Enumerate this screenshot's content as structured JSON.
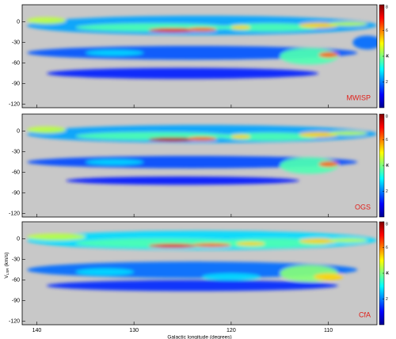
{
  "chart_data": [
    {
      "type": "heatmap",
      "label": "MWISP",
      "background": "#c8c8c8",
      "xlim": [
        141.5,
        105
      ],
      "ylim": [
        -125,
        25
      ],
      "xticks": [
        140,
        130,
        120,
        110
      ],
      "yticks": [
        0,
        -30,
        -60,
        -90,
        -120
      ],
      "clim": [
        0,
        8
      ],
      "cticks": [
        2,
        4,
        6,
        8
      ],
      "clabel": "K",
      "features": {
        "l": [
          123,
          124,
          125,
          128,
          116,
          139,
          126,
          123,
          119,
          112,
          110,
          111,
          108,
          132,
          106
        ],
        "v": [
          -5,
          -45,
          -75,
          -8,
          -8,
          2,
          -12,
          -11,
          -8,
          -50,
          -48,
          -5,
          -3,
          -45,
          -30
        ],
        "dl": [
          18,
          17,
          14,
          8,
          5,
          2,
          2.5,
          1.5,
          1,
          3,
          1,
          2,
          2,
          3,
          1.5
        ],
        "dv": [
          14,
          10,
          8,
          6,
          6,
          5,
          3,
          3,
          3,
          12,
          4,
          4,
          3,
          4,
          10
        ],
        "T": [
          1.5,
          0.8,
          0.3,
          3,
          3,
          4,
          7,
          6,
          5,
          3,
          6,
          5,
          4,
          2,
          1
        ]
      }
    },
    {
      "type": "heatmap",
      "label": "OGS",
      "background": "#c8c8c8",
      "xlim": [
        141.5,
        105
      ],
      "ylim": [
        -125,
        25
      ],
      "xticks": [
        140,
        130,
        120,
        110
      ],
      "yticks": [
        0,
        -30,
        -60,
        -90,
        -120
      ],
      "clim": [
        0,
        8
      ],
      "cticks": [
        2,
        4,
        6,
        8
      ],
      "clabel": "K",
      "features": {
        "l": [
          123,
          124,
          125,
          128,
          116,
          139,
          126,
          123,
          119,
          112,
          110,
          111,
          108,
          132
        ],
        "v": [
          -4,
          -45,
          -72,
          -7,
          -8,
          2,
          -12,
          -11,
          -8,
          -50,
          -48,
          -5,
          -3,
          -45
        ],
        "dl": [
          18,
          17,
          12,
          8,
          5,
          2,
          2.5,
          1.5,
          1,
          3,
          1,
          2,
          2,
          3
        ],
        "dv": [
          13,
          9,
          6,
          6,
          6,
          5,
          3,
          3,
          3,
          12,
          4,
          4,
          3,
          4
        ],
        "T": [
          1.5,
          0.7,
          0.25,
          3,
          3,
          4,
          7.5,
          6,
          5,
          3,
          6,
          5,
          4,
          2
        ]
      }
    },
    {
      "type": "heatmap",
      "label": "CfA",
      "background": "#c8c8c8",
      "xlim": [
        141.5,
        105
      ],
      "ylim": [
        -125,
        25
      ],
      "xticks": [
        140,
        130,
        120,
        110
      ],
      "yticks": [
        0,
        -30,
        -60,
        -90,
        -120
      ],
      "clim": [
        0,
        8
      ],
      "cticks": [
        2,
        4,
        6,
        8
      ],
      "clabel": "K",
      "xlabel": "Galactic longitude (degrees)",
      "ylabel": "V",
      "ylabel_sub": "LSR",
      "ylabel_unit": "(km/s)",
      "features": {
        "l": [
          123,
          124,
          124,
          127,
          116,
          138,
          126,
          122,
          118,
          112,
          110,
          111,
          108,
          133,
          120
        ],
        "v": [
          -2,
          -45,
          -68,
          -6,
          -6,
          3,
          -10,
          -9,
          -7,
          -50,
          -55,
          -3,
          -2,
          -48,
          -55
        ],
        "dl": [
          18,
          17,
          15,
          9,
          6,
          3,
          2.5,
          2,
          1.5,
          3,
          1.5,
          2,
          2,
          3,
          3
        ],
        "dv": [
          14,
          12,
          8,
          7,
          7,
          5,
          3,
          3,
          3,
          12,
          5,
          4,
          3,
          5,
          5
        ],
        "T": [
          2,
          1,
          0.4,
          3,
          3,
          4,
          7,
          6,
          5,
          3.5,
          5,
          5,
          4,
          2,
          2
        ]
      }
    }
  ]
}
